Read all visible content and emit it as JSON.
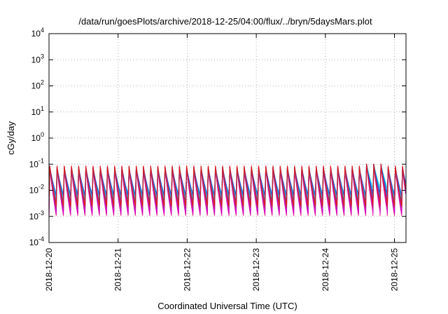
{
  "chart_data": {
    "type": "line",
    "title": "/data/run/goesPlots/archive/2018-12-25/04:00/flux/../bryn/5daysMars.plot",
    "xlabel": "Coordinated Universal Time (UTC)",
    "ylabel": "cGy/day",
    "yscale": "log",
    "ylim": [
      0.0001,
      10000
    ],
    "xlim": [
      "2018-12-20T00:00",
      "2018-12-25T04:00"
    ],
    "grid": true,
    "legend": "none",
    "x_ticks": [
      "2018-12-20",
      "2018-12-21",
      "2018-12-22",
      "2018-12-23",
      "2018-12-24",
      "2018-12-25"
    ],
    "y_ticks": [
      {
        "base": "10",
        "exp": "-4",
        "value": 0.0001
      },
      {
        "base": "10",
        "exp": "-3",
        "value": 0.001
      },
      {
        "base": "10",
        "exp": "-2",
        "value": 0.01
      },
      {
        "base": "10",
        "exp": "-1",
        "value": 0.1
      },
      {
        "base": "10",
        "exp": "0",
        "value": 1
      },
      {
        "base": "10",
        "exp": "1",
        "value": 10
      },
      {
        "base": "10",
        "exp": "2",
        "value": 100
      },
      {
        "base": "10",
        "exp": "3",
        "value": 1000
      },
      {
        "base": "10",
        "exp": "4",
        "value": 10000
      }
    ],
    "cycle_hours": 2.5,
    "series": [
      {
        "color": "#e0158f",
        "peak": 0.075,
        "min": 0.0011
      },
      {
        "color": "#d400d4",
        "peak": 0.07,
        "min": 0.0014
      },
      {
        "color": "#a8328c",
        "peak": 0.07,
        "min": 0.002
      },
      {
        "color": "#0aa8a8",
        "peak": 0.065,
        "min": 0.004
      },
      {
        "color": "#00d8d8",
        "peak": 0.06,
        "min": 0.007
      },
      {
        "color": "#7a2fd0",
        "peak": 0.07,
        "min": 0.003
      },
      {
        "color": "#2050e0",
        "peak": 0.08,
        "min": 0.006
      },
      {
        "color": "#dd1b1b",
        "peak": 0.085,
        "min": 0.0025
      }
    ],
    "spike": {
      "date": "2018-12-24T16:00",
      "peak": 0.1
    }
  }
}
